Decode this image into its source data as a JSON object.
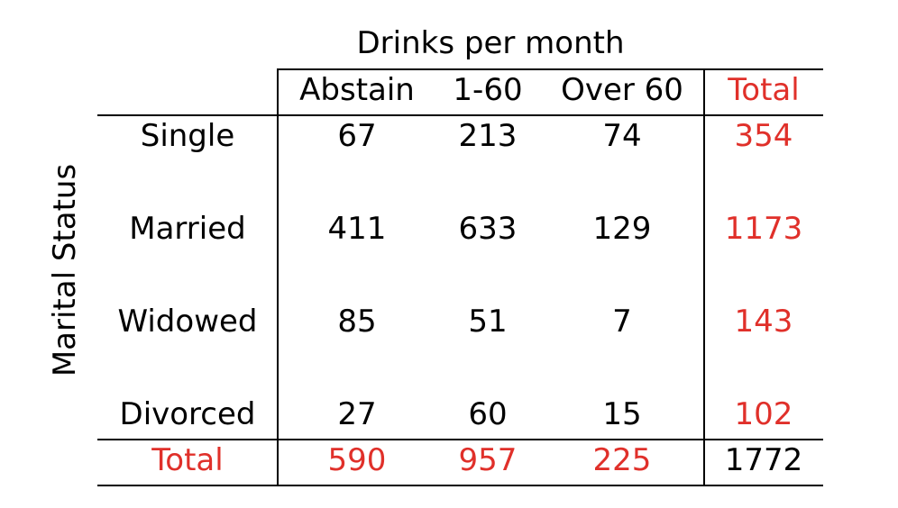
{
  "chart_data": {
    "type": "table",
    "title": "Drinks per month",
    "col_header": "Drinks per month",
    "row_header": "Marital Status",
    "columns": [
      "Abstain",
      "1-60",
      "Over 60",
      "Total"
    ],
    "rows": [
      "Single",
      "Married",
      "Widowed",
      "Divorced",
      "Total"
    ],
    "values": [
      [
        "67",
        "213",
        "74",
        "354"
      ],
      [
        "411",
        "633",
        "129",
        "1173"
      ],
      [
        "85",
        "51",
        "7",
        "143"
      ],
      [
        "27",
        "60",
        "15",
        "102"
      ],
      [
        "590",
        "957",
        "225",
        "1772"
      ]
    ],
    "highlight_color": "#e0302a",
    "text_color": "#000000"
  }
}
